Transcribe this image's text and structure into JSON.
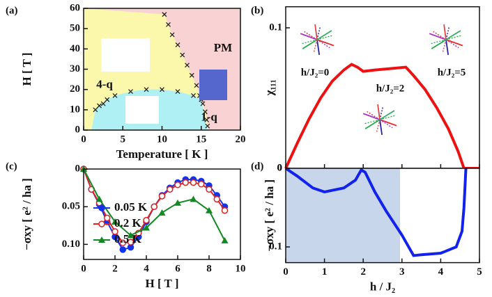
{
  "chart_data": [
    {
      "type": "scatter",
      "panel_label": "(a)",
      "xlabel": "Temperature [ K ]",
      "ylabel": "H [ T ]",
      "xlim": [
        0,
        20
      ],
      "ylim": [
        0,
        60
      ],
      "xticks": [
        0,
        5,
        10,
        15,
        20
      ],
      "yticks": [
        0,
        10,
        20,
        30,
        40,
        50,
        60
      ],
      "marker": "x",
      "background": "#f9d3d3",
      "series": [
        {
          "color": "#222222",
          "x": [
            10.3,
            10.8,
            11.3,
            12.0,
            12.6,
            13.2,
            13.8,
            14.4,
            14.8,
            15.2,
            15.5,
            15.7,
            15.8
          ],
          "y": [
            57,
            52,
            47,
            42,
            37,
            32,
            27,
            22,
            17,
            13,
            9,
            5,
            2
          ]
        },
        {
          "color": "#222222",
          "x": [
            1.5,
            2.0,
            2.5,
            3.0,
            4.0,
            6.0,
            8.0,
            10.0,
            12.0,
            14.0,
            15.0
          ],
          "y": [
            10,
            12,
            13,
            15,
            17,
            19,
            20,
            20,
            19,
            17,
            15
          ]
        }
      ],
      "regions": [
        {
          "text": "4-q",
          "color": "#fbf8ab"
        },
        {
          "text": "1-q",
          "color": "#aef0f4"
        },
        {
          "text": "PM",
          "color": "#f9d3d3"
        }
      ]
    },
    {
      "type": "line",
      "panel_label": "(b)",
      "ylabel": "χ₁₁₁",
      "xlim": [
        0,
        5
      ],
      "ylim": [
        0,
        0.115
      ],
      "xticks": [
        0,
        1,
        2,
        3,
        4,
        5
      ],
      "yticks": [
        0,
        0.1
      ],
      "xtick_labels": false,
      "x": [
        0,
        0.3,
        0.6,
        0.9,
        1.2,
        1.5,
        1.7,
        1.85,
        2.0,
        2.3,
        2.7,
        3.1,
        3.3,
        3.6,
        3.9,
        4.2,
        4.45,
        4.6,
        4.7,
        5
      ],
      "series": [
        {
          "color": "#ee1111",
          "values": [
            0,
            0.018,
            0.035,
            0.05,
            0.062,
            0.07,
            0.074,
            0.072,
            0.069,
            0.07,
            0.071,
            0.072,
            0.066,
            0.056,
            0.043,
            0.028,
            0.012,
            0,
            0,
            0
          ]
        }
      ],
      "annotations": [
        "h/J₂=0",
        "h/J₂=2",
        "h/J₂=5"
      ]
    },
    {
      "type": "line",
      "panel_label": "(c)",
      "xlabel": "H [ T ]",
      "ylabel": "−σxy [ e² / ha ]",
      "xlim": [
        0,
        10
      ],
      "ylim": [
        0,
        0.12
      ],
      "invert_y": true,
      "xticks": [
        0,
        2,
        4,
        6,
        8,
        10
      ],
      "yticks": [
        0,
        0.05,
        {
          "value": 0.1,
          "label": "0.10"
        }
      ],
      "legend": "bottom-left",
      "series": [
        {
          "name": "0.05 K",
          "color": "#1133ee",
          "marker": "circle",
          "x": [
            0,
            0.5,
            1,
            1.5,
            2,
            2.5,
            3,
            3.5,
            4,
            4.5,
            5,
            5.5,
            6,
            6.5,
            7,
            7.5,
            8,
            8.5,
            9
          ],
          "values": [
            0,
            0.027,
            0.047,
            0.07,
            0.09,
            0.107,
            0.104,
            0.09,
            0.07,
            0.05,
            0.035,
            0.025,
            0.018,
            0.014,
            0.014,
            0.016,
            0.022,
            0.035,
            0.05
          ]
        },
        {
          "name": "0.2 K",
          "color": "#dd2222",
          "marker": "open-circle",
          "x": [
            0,
            0.5,
            1,
            1.5,
            2,
            2.5,
            3,
            3.5,
            4,
            4.5,
            5,
            5.5,
            6,
            6.5,
            7,
            7.5,
            8,
            8.5,
            9
          ],
          "values": [
            0,
            0.027,
            0.045,
            0.065,
            0.083,
            0.098,
            0.097,
            0.085,
            0.068,
            0.05,
            0.036,
            0.027,
            0.021,
            0.018,
            0.018,
            0.02,
            0.027,
            0.04,
            0.055
          ]
        },
        {
          "name": "0.5 K",
          "color": "#118822",
          "marker": "triangle",
          "x": [
            0,
            1,
            2,
            3,
            4,
            5,
            6,
            7,
            8,
            9
          ],
          "values": [
            0,
            0.04,
            0.07,
            0.088,
            0.078,
            0.058,
            0.045,
            0.04,
            0.055,
            0.095
          ]
        }
      ]
    },
    {
      "type": "line",
      "panel_label": "(d)",
      "xlabel": "h / J₂",
      "ylabel": "−σxy [ e² / ha ]",
      "xlim": [
        0,
        5
      ],
      "ylim": [
        0,
        0.12
      ],
      "invert_y": true,
      "xticks": [
        0,
        1,
        2,
        3,
        4,
        5
      ],
      "yticks": [
        0,
        0.1
      ],
      "shaded_xrange": [
        0,
        2.95
      ],
      "shade_color": "#c8d6ec",
      "x": [
        0,
        0.3,
        0.7,
        1.0,
        1.5,
        1.8,
        1.95,
        2.05,
        2.3,
        2.6,
        3.0,
        3.3,
        3.5,
        4.0,
        4.4,
        4.55,
        4.6,
        4.65
      ],
      "series": [
        {
          "color": "#1122ee",
          "values": [
            0,
            0.01,
            0.025,
            0.03,
            0.025,
            0.015,
            0.002,
            0.005,
            0.03,
            0.055,
            0.085,
            0.111,
            0.11,
            0.108,
            0.1,
            0.08,
            0.05,
            0
          ]
        }
      ]
    }
  ]
}
